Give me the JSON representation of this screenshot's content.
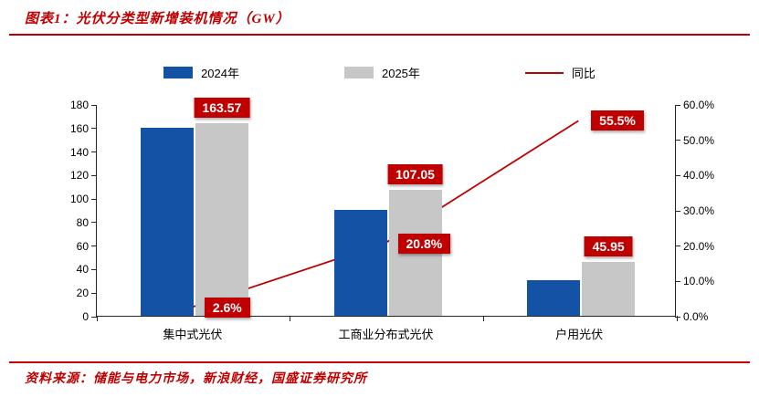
{
  "header": {
    "title": "图表1：光伏分类型新增装机情况（GW）"
  },
  "footer": {
    "source": "资料来源：储能与电力市场，新浪财经，国盛证券研究所"
  },
  "colors": {
    "accent_red": "#C00000",
    "bar_2024": "#1452A5",
    "bar_2025": "#C7C7C7",
    "label_bg": "#C00000",
    "label_text": "#FFFFFF",
    "axis": "#262626"
  },
  "chart_data": {
    "type": "bar",
    "subtype": "grouped-bar-with-line",
    "title": "光伏分类型新增装机情况（GW）",
    "categories": [
      "集中式光伏",
      "工商业分布式光伏",
      "户用光伏"
    ],
    "series": [
      {
        "name": "2024年",
        "type": "bar",
        "axis": "left",
        "color": "#1452A5",
        "values": [
          160,
          90,
          30
        ]
      },
      {
        "name": "2025年",
        "type": "bar",
        "axis": "left",
        "color": "#C7C7C7",
        "values": [
          163.57,
          107.05,
          45.95
        ],
        "labels": [
          "163.57",
          "107.05",
          "45.95"
        ]
      },
      {
        "name": "同比",
        "type": "line",
        "axis": "right",
        "color": "#C00000",
        "values": [
          2.6,
          20.8,
          55.5
        ],
        "labels": [
          "2.6%",
          "20.8%",
          "55.5%"
        ]
      }
    ],
    "left_axis": {
      "min": 0,
      "max": 180,
      "step": 20,
      "ticks": [
        "0",
        "20",
        "40",
        "60",
        "80",
        "100",
        "120",
        "140",
        "160",
        "180"
      ]
    },
    "right_axis": {
      "min": 0,
      "max": 60,
      "step": 10,
      "ticks": [
        "0.0%",
        "10.0%",
        "20.0%",
        "30.0%",
        "40.0%",
        "50.0%",
        "60.0%"
      ]
    },
    "legend_position": "top",
    "grid": false
  }
}
